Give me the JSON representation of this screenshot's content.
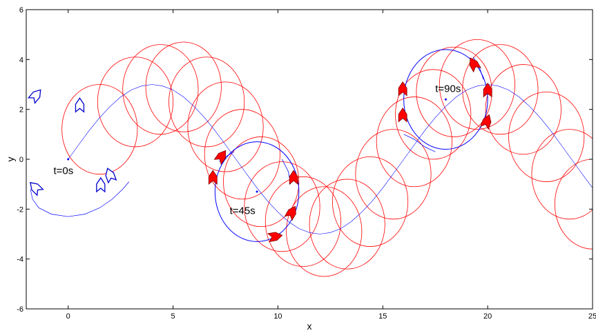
{
  "chart_data": {
    "type": "line",
    "xlabel": "x",
    "ylabel": "y",
    "xlim": [
      -2,
      25
    ],
    "ylim": [
      -6,
      6
    ],
    "xticks": [
      0,
      5,
      10,
      15,
      20,
      25
    ],
    "yticks": [
      -6,
      -4,
      -2,
      0,
      2,
      4,
      6
    ],
    "xtick_labels": [
      "0",
      "5",
      "10",
      "15",
      "20",
      "25"
    ],
    "ytick_labels": [
      "-6",
      "-4",
      "-2",
      "0",
      "2",
      "4",
      "6"
    ],
    "grid": false,
    "colors": {
      "reference": "#0000ff",
      "circles": "#ff0000",
      "vehicle_fill": "#ff0000",
      "vehicle_edge": "#0000cc"
    },
    "reference_path": {
      "name": "reference",
      "x": [
        0,
        0.5,
        1,
        1.5,
        2,
        2.5,
        3,
        3.5,
        4,
        4.5,
        5,
        5.5,
        6,
        6.5,
        7,
        7.5,
        8,
        8.5,
        9,
        9.5,
        10,
        10.5,
        11,
        11.5,
        12,
        12.5,
        13,
        13.5,
        14,
        14.5,
        15,
        15.5,
        16,
        16.5,
        17,
        17.5,
        18,
        18.5,
        19,
        19.5,
        20,
        20.5,
        21,
        21.5,
        22,
        22.5,
        23,
        23.5,
        24,
        24.5,
        25
      ],
      "y": [
        0,
        0.58,
        1.15,
        1.67,
        2.12,
        2.5,
        2.78,
        2.94,
        3.0,
        2.94,
        2.78,
        2.5,
        2.12,
        1.67,
        1.15,
        0.58,
        0,
        -0.58,
        -1.15,
        -1.67,
        -2.12,
        -2.5,
        -2.78,
        -2.94,
        -3.0,
        -2.94,
        -2.78,
        -2.5,
        -2.12,
        -1.67,
        -1.15,
        -0.58,
        0,
        0.58,
        1.15,
        1.67,
        2.12,
        2.5,
        2.78,
        2.94,
        3.0,
        2.94,
        2.78,
        2.5,
        2.12,
        1.67,
        1.15,
        0.58,
        0,
        -0.58,
        -1.15
      ]
    },
    "initial_arc": {
      "x": [
        -1.8,
        -1.7,
        -1.4,
        -0.8,
        0,
        0.8,
        1.5,
        2.1,
        2.6,
        2.9
      ],
      "y": [
        -1.2,
        -1.6,
        -1.95,
        -2.2,
        -2.3,
        -2.2,
        -1.95,
        -1.6,
        -1.2,
        -0.9
      ]
    },
    "loop_45s": {
      "cx": 9.0,
      "cy": -1.3,
      "r": 2.0
    },
    "loop_90s": {
      "cx": 18.0,
      "cy": 2.4,
      "r": 2.0
    },
    "loop_connectors": [
      {
        "x": [
          7.2,
          7.5,
          7.9
        ],
        "y": [
          -0.1,
          0.1,
          0.3
        ]
      },
      {
        "x": [
          10.6,
          10.5,
          10.2
        ],
        "y": [
          -1.0,
          -0.5,
          0.0
        ]
      },
      {
        "x": [
          16.0,
          16.5,
          17.0,
          17.5
        ],
        "y": [
          1.0,
          0.8,
          0.5,
          0.3
        ]
      },
      {
        "x": [
          19.8,
          19.6,
          19.3
        ],
        "y": [
          3.2,
          3.7,
          4.1
        ]
      }
    ],
    "circles": [
      {
        "cx": 1.5,
        "cy": 1.2,
        "r": 1.8
      },
      {
        "cx": 3.2,
        "cy": 2.3,
        "r": 1.8
      },
      {
        "cx": 4.4,
        "cy": 2.8,
        "r": 1.8
      },
      {
        "cx": 5.5,
        "cy": 2.9,
        "r": 1.8
      },
      {
        "cx": 6.6,
        "cy": 2.3,
        "r": 1.8
      },
      {
        "cx": 7.5,
        "cy": 1.3,
        "r": 1.8
      },
      {
        "cx": 8.3,
        "cy": 0.2,
        "r": 1.8
      },
      {
        "cx": 9.2,
        "cy": -0.9,
        "r": 1.8
      },
      {
        "cx": 10.2,
        "cy": -1.9,
        "r": 1.8
      },
      {
        "cx": 11.2,
        "cy": -2.5,
        "r": 1.8
      },
      {
        "cx": 12.2,
        "cy": -2.9,
        "r": 1.8
      },
      {
        "cx": 13.3,
        "cy": -2.6,
        "r": 1.8
      },
      {
        "cx": 14.4,
        "cy": -1.7,
        "r": 1.8
      },
      {
        "cx": 15.5,
        "cy": -0.6,
        "r": 1.8
      },
      {
        "cx": 16.5,
        "cy": 0.7,
        "r": 1.8
      },
      {
        "cx": 17.4,
        "cy": 1.8,
        "r": 1.8
      },
      {
        "cx": 18.4,
        "cy": 2.7,
        "r": 1.8
      },
      {
        "cx": 19.5,
        "cy": 3.0,
        "r": 1.8
      },
      {
        "cx": 20.6,
        "cy": 2.8,
        "r": 1.8
      },
      {
        "cx": 21.7,
        "cy": 2.0,
        "r": 1.8
      },
      {
        "cx": 22.8,
        "cy": 0.9,
        "r": 1.8
      },
      {
        "cx": 23.9,
        "cy": -0.6,
        "r": 1.8
      },
      {
        "cx": 25.0,
        "cy": -1.8,
        "r": 1.8
      }
    ],
    "vehicles_outline": [
      {
        "x": -1.55,
        "y": 2.55,
        "angle": 40
      },
      {
        "x": 0.55,
        "y": 2.15,
        "angle": 0
      },
      {
        "x": -1.55,
        "y": -1.15,
        "angle": -45
      },
      {
        "x": 1.55,
        "y": -1.05,
        "angle": 0
      },
      {
        "x": 2.0,
        "y": -0.65,
        "angle": -20
      }
    ],
    "vehicles_filled": [
      {
        "x": 7.3,
        "y": 0.1,
        "angle": 35
      },
      {
        "x": 6.9,
        "y": -0.75,
        "angle": 0
      },
      {
        "x": 10.75,
        "y": -0.75,
        "angle": 0
      },
      {
        "x": 10.65,
        "y": -2.15,
        "angle": 30
      },
      {
        "x": 9.85,
        "y": -3.1,
        "angle": 80
      },
      {
        "x": 15.95,
        "y": 2.8,
        "angle": 0
      },
      {
        "x": 15.95,
        "y": 1.75,
        "angle": 0
      },
      {
        "x": 19.35,
        "y": 3.8,
        "angle": -30
      },
      {
        "x": 20.0,
        "y": 2.75,
        "angle": 0
      },
      {
        "x": 19.95,
        "y": 1.5,
        "angle": 20
      }
    ],
    "annotations": [
      {
        "text": "t=0s",
        "x": -0.7,
        "y": -0.6,
        "px": 0.0,
        "py": 0.0
      },
      {
        "text": "t=45s",
        "x": 7.7,
        "y": -2.2,
        "px": 9.0,
        "py": -1.3
      },
      {
        "text": "t=90s",
        "x": 17.5,
        "y": 2.7,
        "px": 18.0,
        "py": 2.4
      }
    ]
  }
}
